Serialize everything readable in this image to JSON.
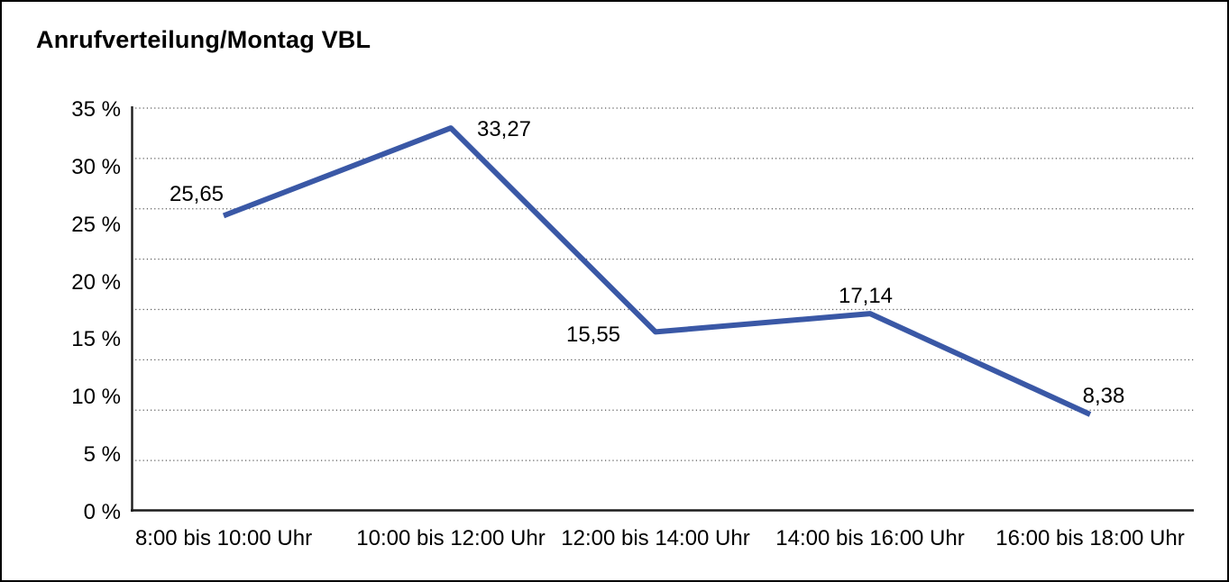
{
  "window": {
    "title": "Anrufverteilung/Montag VBL"
  },
  "colors": {
    "line": "#3a58a6",
    "grid": "#5a5a5a",
    "axis": "#1c1c1c",
    "text": "#000000",
    "background": "#ffffff",
    "frame_border": "#000000"
  },
  "chart_data": {
    "type": "line",
    "title": "Anrufverteilung/Montag VBL",
    "categories": [
      "8:00 bis 10:00 Uhr",
      "10:00 bis 12:00 Uhr",
      "12:00 bis 14:00 Uhr",
      "14:00 bis 16:00 Uhr",
      "16:00 bis 18:00 Uhr"
    ],
    "values": [
      25.65,
      33.27,
      15.55,
      17.14,
      8.38
    ],
    "value_labels": [
      "25,65",
      "33,27",
      "15,55",
      "17,14",
      "8,38"
    ],
    "xlabel": "",
    "ylabel": "",
    "ylim": [
      0,
      35
    ],
    "yticks": [
      {
        "value": 0,
        "label": "0 %"
      },
      {
        "value": 5,
        "label": "5 %"
      },
      {
        "value": 10,
        "label": "10 %"
      },
      {
        "value": 15,
        "label": "15 %"
      },
      {
        "value": 20,
        "label": "20 %"
      },
      {
        "value": 25,
        "label": "25 %"
      },
      {
        "value": 30,
        "label": "30 %"
      },
      {
        "value": 35,
        "label": "35 %"
      }
    ],
    "grid": "horizontal-dotted",
    "legend": "none"
  }
}
